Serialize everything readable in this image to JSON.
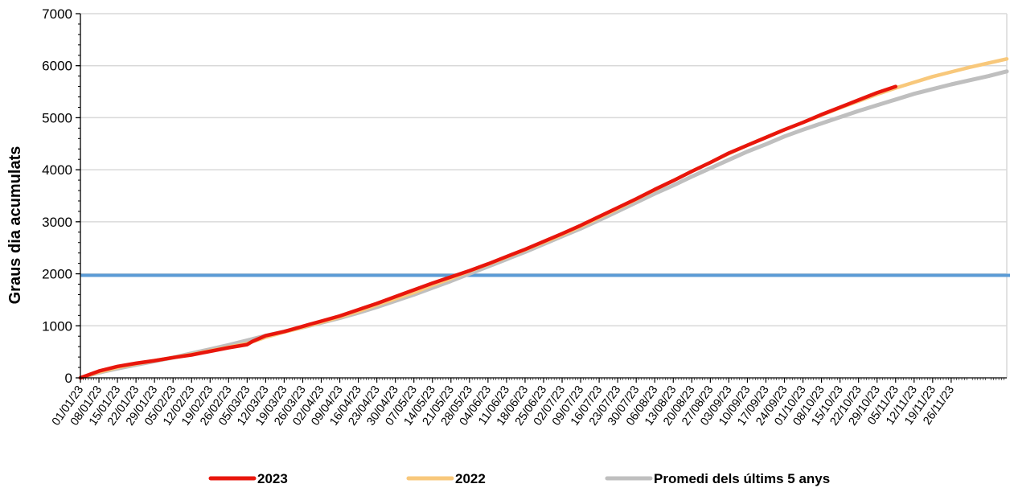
{
  "chart_data": {
    "type": "line",
    "title": "",
    "xlabel": "",
    "ylabel": "Graus dia acumulats",
    "ylim": [
      0,
      7000
    ],
    "y_ticks": [
      0,
      1000,
      2000,
      3000,
      4000,
      5000,
      6000,
      7000
    ],
    "x_tick_labels": [
      "01/01/23",
      "08/01/23",
      "15/01/23",
      "22/01/23",
      "29/01/23",
      "05/02/23",
      "12/02/23",
      "19/02/23",
      "26/02/23",
      "05/03/23",
      "12/03/23",
      "19/03/23",
      "26/03/23",
      "02/04/23",
      "09/04/23",
      "16/04/23",
      "23/04/23",
      "30/04/23",
      "07/05/23",
      "14/05/23",
      "21/05/23",
      "28/05/23",
      "04/06/23",
      "11/06/23",
      "18/06/23",
      "25/06/23",
      "02/07/23",
      "09/07/23",
      "16/07/23",
      "23/07/23",
      "30/07/23",
      "06/08/23",
      "13/08/23",
      "20/08/23",
      "27/08/23",
      "03/09/23",
      "10/09/23",
      "17/09/23",
      "24/09/23",
      "01/10/23",
      "08/10/23",
      "15/10/23",
      "22/10/23",
      "29/10/23",
      "05/11/23",
      "12/11/23",
      "19/11/23",
      "26/11/23"
    ],
    "x_range_days": [
      0,
      350
    ],
    "grid": true,
    "legend_position": "bottom",
    "threshold": {
      "value": 1970,
      "color": "#5b9bd5"
    },
    "series": [
      {
        "name": "2023",
        "color": "#e8160c",
        "x_days": [
          0,
          7,
          14,
          21,
          28,
          35,
          42,
          49,
          56,
          63,
          65,
          70,
          77,
          84,
          91,
          98,
          105,
          112,
          119,
          126,
          133,
          140,
          147,
          154,
          161,
          168,
          175,
          182,
          189,
          196,
          203,
          210,
          217,
          224,
          231,
          238,
          245,
          252,
          259,
          266,
          273,
          280,
          287,
          294,
          301,
          308
        ],
        "values": [
          0,
          130,
          220,
          280,
          330,
          390,
          440,
          510,
          580,
          640,
          700,
          810,
          890,
          990,
          1090,
          1190,
          1310,
          1430,
          1560,
          1690,
          1820,
          1940,
          2060,
          2190,
          2330,
          2470,
          2620,
          2770,
          2930,
          3100,
          3270,
          3440,
          3620,
          3790,
          3970,
          4140,
          4320,
          4470,
          4620,
          4770,
          4910,
          5060,
          5200,
          5340,
          5480,
          5600
        ]
      },
      {
        "name": "2022",
        "color": "#f8c87b",
        "x_days": [
          0,
          7,
          14,
          21,
          28,
          35,
          42,
          49,
          56,
          63,
          70,
          77,
          84,
          91,
          98,
          105,
          112,
          119,
          126,
          133,
          140,
          147,
          154,
          161,
          168,
          175,
          182,
          189,
          196,
          203,
          210,
          217,
          224,
          231,
          238,
          245,
          252,
          259,
          266,
          273,
          280,
          287,
          294,
          301,
          308,
          315,
          322,
          329,
          336,
          343,
          350
        ],
        "values": [
          0,
          110,
          200,
          270,
          330,
          390,
          450,
          520,
          590,
          660,
          780,
          880,
          970,
          1070,
          1170,
          1280,
          1400,
          1520,
          1640,
          1780,
          1910,
          2050,
          2180,
          2320,
          2460,
          2600,
          2750,
          2910,
          3080,
          3250,
          3430,
          3610,
          3790,
          3970,
          4140,
          4310,
          4470,
          4620,
          4770,
          4910,
          5050,
          5190,
          5320,
          5450,
          5570,
          5680,
          5790,
          5880,
          5970,
          6050,
          6130
        ]
      },
      {
        "name": "Promedi dels últims 5 anys",
        "color": "#bfbfbf",
        "x_days": [
          0,
          7,
          14,
          21,
          28,
          35,
          42,
          49,
          56,
          63,
          70,
          77,
          84,
          91,
          98,
          105,
          112,
          119,
          126,
          133,
          140,
          147,
          154,
          161,
          168,
          175,
          182,
          189,
          196,
          203,
          210,
          217,
          224,
          231,
          238,
          245,
          252,
          259,
          266,
          273,
          280,
          287,
          294,
          301,
          308,
          315,
          322,
          329,
          336,
          343,
          350
        ],
        "values": [
          0,
          100,
          180,
          250,
          320,
          390,
          470,
          550,
          630,
          720,
          810,
          890,
          970,
          1060,
          1150,
          1250,
          1360,
          1480,
          1600,
          1730,
          1860,
          2000,
          2140,
          2280,
          2420,
          2570,
          2720,
          2870,
          3030,
          3200,
          3370,
          3540,
          3700,
          3870,
          4030,
          4190,
          4350,
          4490,
          4640,
          4770,
          4890,
          5010,
          5130,
          5240,
          5350,
          5460,
          5550,
          5640,
          5720,
          5800,
          5890
        ]
      }
    ]
  }
}
